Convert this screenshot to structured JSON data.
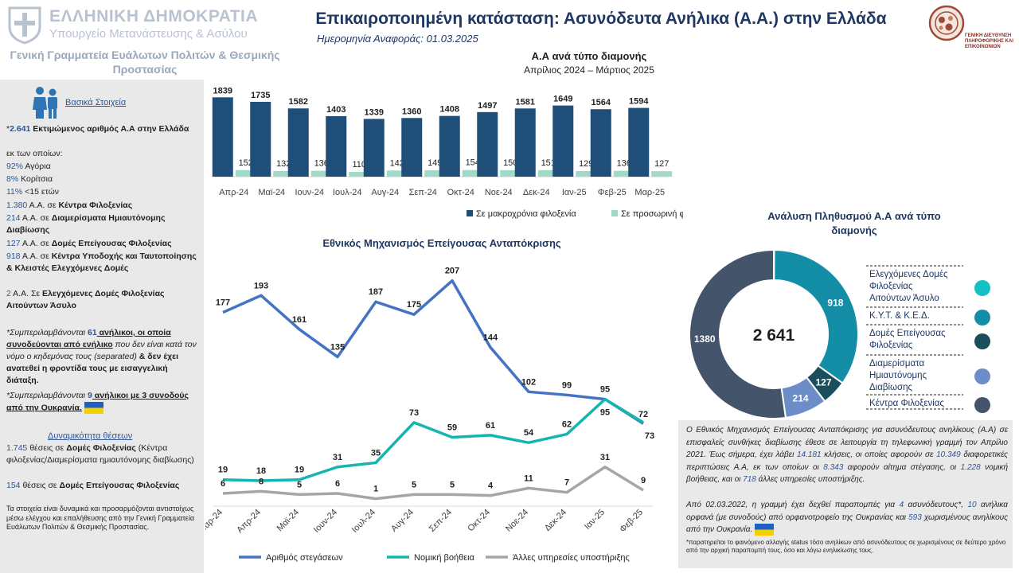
{
  "header": {
    "country": "ΕΛΛΗΝΙΚΗ ΔΗΜΟΚΡΑΤΙΑ",
    "ministry": "Υπουργείο Μετανάστευσης & Ασύλου",
    "secretariat": "Γενική Γραμματεία Ευάλωτων Πολιτών & Θεσμικής Προστασίας",
    "title": "Επικαιροποιημένη κατάσταση: Ασυνόδευτα Ανήλικα (Α.Α.) στην Ελλάδα",
    "ref_date": "Ημερομηνία Αναφοράς: 01.03.2025",
    "right_logo_caption": "ΓΕΝΙΚΗ ΔΙΕΥΘΥΝΣΗ ΠΛΗΡΟΦΟΡΙΚΗΣ ΚΑΙ ΕΠΙΚΟΙΝΩΝΙΩΝ"
  },
  "left": {
    "basic_title": "Βασικά Στοιχεία",
    "l1_prefix": "*",
    "l1_num": "2.641",
    "l1_text": " Εκτιμώμενος αριθμός Α.Α στην Ελλάδα",
    "l2": "εκ των οποίων:",
    "l3_num": "92%",
    "l3_text": " Αγόρια",
    "l4_num": "8%",
    "l4_text": " Κορίτσια",
    "l5_num": "11%",
    "l5_text": " <15 ετών",
    "l6_num": "1.380",
    "l6_mid": " A.A. σε ",
    "l6_bold": "Κέντρα Φιλοξενίας",
    "l7_num": "214",
    "l7_mid": " Α.Α. σε ",
    "l7_bold": "Διαμερίσματα Ημιαυτόνομης Διαβίωσης",
    "l8_num": "127",
    "l8_mid": " Α.Α. σε ",
    "l8_bold": "Δομές Επείγουσας Φιλοξενίας",
    "l9_num": "918",
    "l9_mid": " Α.Α. σε ",
    "l9_bold": "Κέντρα Υποδοχής και Ταυτοποίησης & Κλειστές Ελεγχόμενες Δομές",
    "l10_num": "2",
    "l10_mid": " Α.Α. Σε ",
    "l10_bold": "Ελεγχόμενες Δομές Φιλοξενίας Αιτούντων Άσυλο",
    "n1_a": "*Συμπεριλαμβάνονται ",
    "n1_num": "61",
    "n1_b": " ανήλικοι, οι οποία συνοδεύονται από ενήλικο",
    "n1_c": " που δεν είναι κατά τον νόμο ο κηδεμόνας τους (separated) ",
    "n1_d": "& δεν έχει ανατεθεί η φροντίδα τους με εισαγγελική διάταξη.",
    "n2_a": "*Συμπεριλαμβάνονται ",
    "n2_num": "9",
    "n2_b": " ανήλικοι με 3 συνοδούς από την Ουκρανία.",
    "dyn_title": "Δυναμικότητα θέσεων",
    "d1_num": "1.745",
    "d1_mid": " θέσεις σε ",
    "d1_bold": "Δομές Φιλοξενίας",
    "d1_rest": " (Κέντρα φιλοξενίας/Διαμερίσματα ημιαυτόνομης διαβίωσης)",
    "d2_num": "154",
    "d2_mid": " θέσεις σε ",
    "d2_bold": "Δομές Επείγουσας Φιλοξενίας",
    "d3": "Τα στοιχεία είναι δυναμικά και προσαρμόζονται αντιστοίχως μέσω ελέγχου και επαλήθευσης από την Γενική Γραμματεία Ευάλωτων Πολιτών & Θεσμικής Προστασίας."
  },
  "info": {
    "p1_a": "Ο Εθνικός Μηχανισμός Επείγουσας Ανταπόκρισης για ασυνόδευτους ανηλίκους (Α.Α) σε επισφαλείς συνθήκες διαβίωσης έθεσε σε λειτουργία τη τηλεφωνική γραμμή τον Απρίλιο 2021. Έως σήμερα, έχει λάβει ",
    "p1_calls": "14.181",
    "p1_b": " κλήσεις, οι οποίες αφορούν σε ",
    "p1_cases": "10.349",
    "p1_c": " διαφορετικές περιπτώσεις Α.Α, εκ των οποίων οι ",
    "p1_housing": "8.343",
    "p1_d": " αφορούν αίτημα στέγασης, οι ",
    "p1_legal": "1.228",
    "p1_e": " νομική βοήθειας, και οι ",
    "p1_other": "718",
    "p1_f": " άλλες υπηρεσίες υποστήριξης.",
    "p2_a": "Από 02.03.2022, η γραμμή έχει δεχθεί παραπομπές για ",
    "p2_n1": "4",
    "p2_b": " ασυνόδευτους*, ",
    "p2_n2": "10",
    "p2_c": " ανήλικα ορφανά (με συνοδούς) από ορφανοτροφείο της Ουκρανίας και ",
    "p2_n3": "593",
    "p2_d": " χωρισμένους ανηλίκους από την Ουκρανία.",
    "footnote": "*παρατηρείται το φαινόμενο αλλαγής status τόσο ανηλίκων από ασυνόδευτους σε χωρισμένους σε δεύτερο χρόνο από την αρχική παραπομπή τους, όσο και λόγω ενηλικίωσης τους."
  },
  "colors": {
    "navy": "#1f4e79",
    "mint": "#9fd9c8",
    "line_blue": "#4472c4",
    "teal": "#14b5ae",
    "gray": "#a6a6a6",
    "title_navy": "#1e3864"
  },
  "chart_data": [
    {
      "type": "bar",
      "title": "Α.Α ανά τύπο διαμονής",
      "subtitle": "Απρίλιος 2024 – Μάρτιος 2025",
      "categories": [
        "Απρ-24",
        "Μαϊ-24",
        "Ιουν-24",
        "Ιουλ-24",
        "Αυγ-24",
        "Σεπ-24",
        "Οκτ-24",
        "Νοε-24",
        "Δεκ-24",
        "Ιαν-25",
        "Φεβ-25",
        "Μαρ-25"
      ],
      "series": [
        {
          "name": "Σε μακροχρόνια φιλοξενία",
          "values": [
            1839,
            1735,
            1582,
            1403,
            1339,
            1360,
            1408,
            1497,
            1581,
            1649,
            1564,
            1594
          ]
        },
        {
          "name": "Σε προσωρινή φιλοξενία",
          "values": [
            152,
            132,
            136,
            110,
            142,
            149,
            154,
            150,
            151,
            129,
            136,
            127
          ]
        }
      ],
      "ylim": [
        0,
        1900
      ],
      "legend": "bottom"
    },
    {
      "type": "line",
      "title": "Εθνικός Μηχανισμός Επείγουσας Ανταπόκρισης",
      "categories": [
        "Μαρ-24",
        "Απρ-24",
        "Μαϊ-24",
        "Ιουν-24",
        "Ιουλ-24",
        "Αυγ-24",
        "Σεπ-24",
        "Οκτ-24",
        "Νοε-24",
        "Δεκ-24",
        "Ιαν-25",
        "Φεβ-25"
      ],
      "series": [
        {
          "name": "Αριθμός στεγάσεων",
          "values": [
            177,
            193,
            161,
            135,
            187,
            175,
            207,
            144,
            102,
            99,
            95,
            72
          ]
        },
        {
          "name": "Νομική βοήθεια",
          "values": [
            19,
            18,
            19,
            31,
            35,
            73,
            59,
            61,
            54,
            62,
            95,
            73
          ]
        },
        {
          "name": "Άλλες υπηρεσίες υποστήριξης",
          "values": [
            6,
            8,
            5,
            6,
            1,
            5,
            5,
            4,
            11,
            7,
            31,
            9
          ]
        }
      ],
      "ylim": [
        0,
        215
      ],
      "legend": "bottom"
    },
    {
      "type": "pie",
      "title": "Ανάλυση Πληθυσμού Α.Α ανά τύπο διαμονής",
      "center_label": "2 641",
      "labels": [
        "Ελεγχόμενες Δομές Φιλοξενίας Αιτούντων Άσυλο",
        "Κ.Υ.Τ. & Κ.Ε.Δ.",
        "Δομές Επείγουσας Φιλοξενίας",
        "Διαμερίσματα Ημιαυτόνομης Διαβίωσης",
        "Κέντρα Φιλοξενίας"
      ],
      "values": [
        2,
        918,
        127,
        214,
        1380
      ],
      "colors": [
        "#13c0c4",
        "#148da6",
        "#1a4d5e",
        "#6c8dc7",
        "#44546a"
      ],
      "legend": "right"
    }
  ]
}
